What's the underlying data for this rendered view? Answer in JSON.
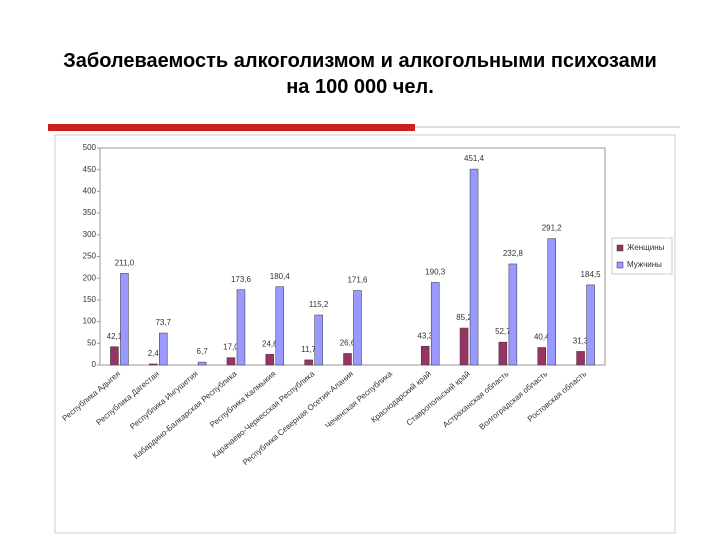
{
  "chart_data": {
    "type": "bar",
    "title": "Заболеваемость алкоголизмом и алкогольными психозами на 100 000 чел.",
    "categories": [
      "Республика Адыгея",
      "Республика Дагестан",
      "Республика Ингушетия",
      "Кабардино-Балкарская Республика",
      "Республика Калмыкия",
      "Карачаево-Черкесская Республика",
      "Республика Северная Осетия-Алания",
      "Чеченская Республика",
      "Краснодарский край",
      "Ставропольский край",
      "Астраханская область",
      "Волгоградская область",
      "Ростовская область"
    ],
    "series": [
      {
        "name": "Женщины",
        "color": "#993366",
        "values": [
          42.1,
          2.4,
          null,
          17.0,
          24.6,
          11.7,
          26.6,
          null,
          43.3,
          85.2,
          52.7,
          40.4,
          31.3
        ],
        "value_labels": [
          "42,1",
          "2,4",
          null,
          "17,0",
          "24,6",
          "11,7",
          "26,6",
          null,
          "43,3",
          "85,2",
          "52,7",
          "40,4",
          "31,3"
        ]
      },
      {
        "name": "Мужчины",
        "color": "#9999ff",
        "values": [
          211.0,
          73.7,
          6.7,
          173.6,
          180.4,
          115.2,
          171.6,
          null,
          190.3,
          451.4,
          232.8,
          291.2,
          184.5
        ],
        "value_labels": [
          "211,0",
          "73,7",
          "6,7",
          "173,6",
          "180,4",
          "115,2",
          "171,6",
          null,
          "190,3",
          "451,4",
          "232,8",
          "291,2",
          "184,5"
        ]
      }
    ],
    "ylim": [
      0,
      500
    ],
    "yticks": [
      0,
      50,
      100,
      150,
      200,
      250,
      300,
      350,
      400,
      450,
      500
    ],
    "grid": false,
    "legend": "right"
  }
}
